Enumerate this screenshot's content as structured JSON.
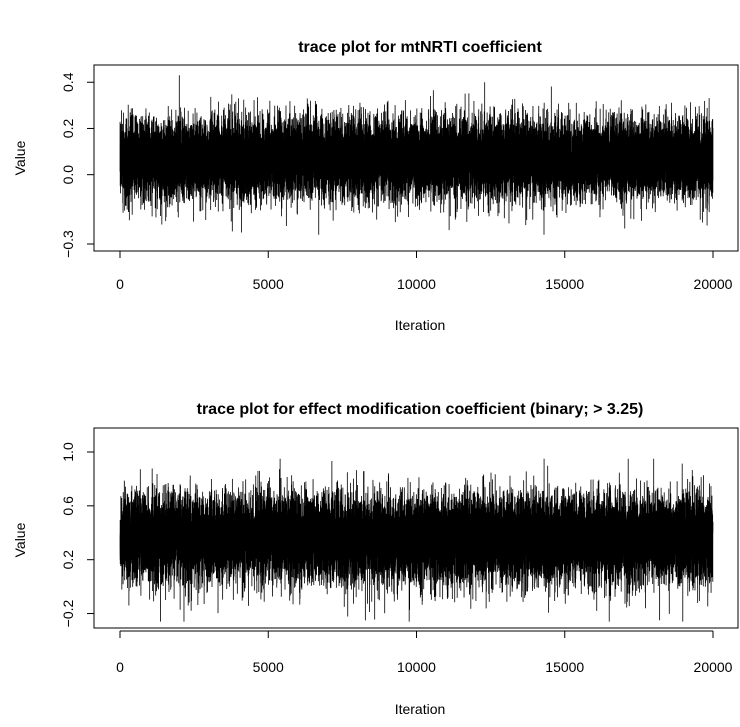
{
  "chart_data": [
    {
      "type": "line",
      "title": "trace plot for mtNRTI coefficient",
      "xlabel": "Iteration",
      "ylabel": "Value",
      "xticks": [
        0,
        5000,
        10000,
        15000,
        20000
      ],
      "xtick_labels": [
        "0",
        "5000",
        "10000",
        "15000",
        "20000"
      ],
      "yticks": [
        -0.3,
        0.0,
        0.2,
        0.4
      ],
      "ytick_labels": [
        "−0.3",
        "0.0",
        "0.2",
        "0.4"
      ],
      "ylim": [
        -0.3,
        0.44
      ],
      "xlim": [
        0,
        20000
      ],
      "series": [
        {
          "n": 20000,
          "mean": 0.07,
          "sd": 0.085,
          "min": -0.26,
          "max": 0.43,
          "color": "#000000",
          "extremes": [
            [
              2000,
              0.43
            ],
            [
              12300,
              0.4
            ],
            [
              14300,
              -0.26
            ],
            [
              4100,
              -0.25
            ],
            [
              11100,
              -0.24
            ],
            [
              19800,
              -0.22
            ]
          ]
        }
      ],
      "grid": false
    },
    {
      "type": "line",
      "title": "trace plot for effect modification coefficient (binary; > 3.25)",
      "xlabel": "Iteration",
      "ylabel": "Value",
      "xticks": [
        0,
        5000,
        10000,
        15000,
        20000
      ],
      "xtick_labels": [
        "0",
        "5000",
        "10000",
        "15000",
        "20000"
      ],
      "yticks": [
        -0.2,
        0.2,
        0.6,
        1.0
      ],
      "ytick_labels": [
        "−0.2",
        "0.2",
        "0.6",
        "1.0"
      ],
      "ylim": [
        -0.3,
        1.0
      ],
      "xlim": [
        0,
        20000
      ],
      "series": [
        {
          "n": 20000,
          "mean": 0.36,
          "sd": 0.16,
          "min": -0.26,
          "max": 0.95,
          "color": "#000000",
          "extremes": [
            [
              5400,
              0.95
            ],
            [
              18000,
              0.95
            ],
            [
              16500,
              -0.26
            ],
            [
              18200,
              -0.25
            ],
            [
              2300,
              -0.14
            ],
            [
              300,
              -0.14
            ]
          ]
        }
      ],
      "grid": false
    }
  ]
}
